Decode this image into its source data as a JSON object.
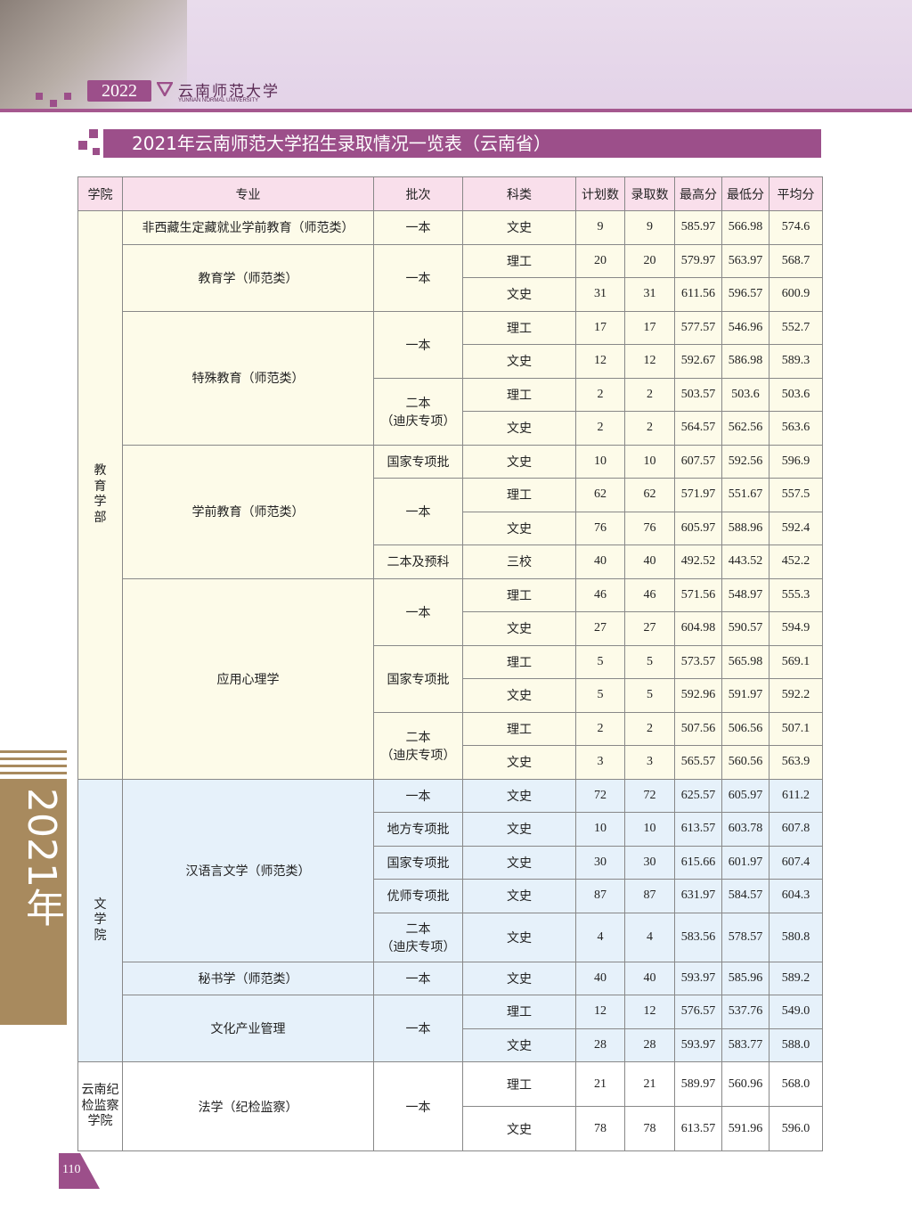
{
  "header": {
    "badge": "2022",
    "logo": "云南师范大学",
    "logo_en": "YUNNAN NORMAL UNIVERSITY"
  },
  "title": "2021年云南师范大学招生录取情况一览表（云南省）",
  "side_label": "2021年",
  "page_number": "110",
  "table": {
    "columns": [
      "学院",
      "专业",
      "批次",
      "科类",
      "计划数",
      "录取数",
      "最高分",
      "最低分",
      "平均分"
    ],
    "colleges": [
      {
        "name": "教育学部",
        "majors": [
          {
            "name": "非西藏生定藏就业学前教育（师范类）",
            "batches": [
              {
                "name": "一本",
                "rows": [
                  [
                    "文史",
                    "9",
                    "9",
                    "585.97",
                    "566.98",
                    "574.6"
                  ]
                ]
              }
            ]
          },
          {
            "name": "教育学（师范类）",
            "batches": [
              {
                "name": "一本",
                "rows": [
                  [
                    "理工",
                    "20",
                    "20",
                    "579.97",
                    "563.97",
                    "568.7"
                  ],
                  [
                    "文史",
                    "31",
                    "31",
                    "611.56",
                    "596.57",
                    "600.9"
                  ]
                ]
              }
            ]
          },
          {
            "name": "特殊教育（师范类）",
            "batches": [
              {
                "name": "一本",
                "rows": [
                  [
                    "理工",
                    "17",
                    "17",
                    "577.57",
                    "546.96",
                    "552.7"
                  ],
                  [
                    "文史",
                    "12",
                    "12",
                    "592.67",
                    "586.98",
                    "589.3"
                  ]
                ]
              },
              {
                "name": "二本\n（迪庆专项）",
                "rows": [
                  [
                    "理工",
                    "2",
                    "2",
                    "503.57",
                    "503.6",
                    "503.6"
                  ],
                  [
                    "文史",
                    "2",
                    "2",
                    "564.57",
                    "562.56",
                    "563.6"
                  ]
                ]
              }
            ]
          },
          {
            "name": "学前教育（师范类）",
            "batches": [
              {
                "name": "国家专项批",
                "rows": [
                  [
                    "文史",
                    "10",
                    "10",
                    "607.57",
                    "592.56",
                    "596.9"
                  ]
                ]
              },
              {
                "name": "一本",
                "rows": [
                  [
                    "理工",
                    "62",
                    "62",
                    "571.97",
                    "551.67",
                    "557.5"
                  ],
                  [
                    "文史",
                    "76",
                    "76",
                    "605.97",
                    "588.96",
                    "592.4"
                  ]
                ]
              },
              {
                "name": "二本及预科",
                "rows": [
                  [
                    "三校",
                    "40",
                    "40",
                    "492.52",
                    "443.52",
                    "452.2"
                  ]
                ]
              }
            ]
          },
          {
            "name": "应用心理学",
            "batches": [
              {
                "name": "一本",
                "rows": [
                  [
                    "理工",
                    "46",
                    "46",
                    "571.56",
                    "548.97",
                    "555.3"
                  ],
                  [
                    "文史",
                    "27",
                    "27",
                    "604.98",
                    "590.57",
                    "594.9"
                  ]
                ]
              },
              {
                "name": "国家专项批",
                "rows": [
                  [
                    "理工",
                    "5",
                    "5",
                    "573.57",
                    "565.98",
                    "569.1"
                  ],
                  [
                    "文史",
                    "5",
                    "5",
                    "592.96",
                    "591.97",
                    "592.2"
                  ]
                ]
              },
              {
                "name": "二本\n（迪庆专项）",
                "rows": [
                  [
                    "理工",
                    "2",
                    "2",
                    "507.56",
                    "506.56",
                    "507.1"
                  ],
                  [
                    "文史",
                    "3",
                    "3",
                    "565.57",
                    "560.56",
                    "563.9"
                  ]
                ]
              }
            ]
          }
        ]
      },
      {
        "name": "文学院",
        "majors": [
          {
            "name": "汉语言文学（师范类）",
            "batches": [
              {
                "name": "一本",
                "rows": [
                  [
                    "文史",
                    "72",
                    "72",
                    "625.57",
                    "605.97",
                    "611.2"
                  ]
                ]
              },
              {
                "name": "地方专项批",
                "rows": [
                  [
                    "文史",
                    "10",
                    "10",
                    "613.57",
                    "603.78",
                    "607.8"
                  ]
                ]
              },
              {
                "name": "国家专项批",
                "rows": [
                  [
                    "文史",
                    "30",
                    "30",
                    "615.66",
                    "601.97",
                    "607.4"
                  ]
                ]
              },
              {
                "name": "优师专项批",
                "rows": [
                  [
                    "文史",
                    "87",
                    "87",
                    "631.97",
                    "584.57",
                    "604.3"
                  ]
                ]
              },
              {
                "name": "二本\n（迪庆专项）",
                "rows": [
                  [
                    "文史",
                    "4",
                    "4",
                    "583.56",
                    "578.57",
                    "580.8"
                  ]
                ]
              }
            ]
          },
          {
            "name": "秘书学（师范类）",
            "batches": [
              {
                "name": "一本",
                "rows": [
                  [
                    "文史",
                    "40",
                    "40",
                    "593.97",
                    "585.96",
                    "589.2"
                  ]
                ]
              }
            ]
          },
          {
            "name": "文化产业管理",
            "batches": [
              {
                "name": "一本",
                "rows": [
                  [
                    "理工",
                    "12",
                    "12",
                    "576.57",
                    "537.76",
                    "549.0"
                  ],
                  [
                    "文史",
                    "28",
                    "28",
                    "593.97",
                    "583.77",
                    "588.0"
                  ]
                ]
              }
            ]
          }
        ]
      },
      {
        "name": "云南纪检监察学院",
        "majors": [
          {
            "name": "法学（纪检监察）",
            "batches": [
              {
                "name": "一本",
                "rows": [
                  [
                    "理工",
                    "21",
                    "21",
                    "589.97",
                    "560.96",
                    "568.0"
                  ],
                  [
                    "文史",
                    "78",
                    "78",
                    "613.57",
                    "591.96",
                    "596.0"
                  ]
                ]
              }
            ]
          }
        ]
      }
    ]
  }
}
